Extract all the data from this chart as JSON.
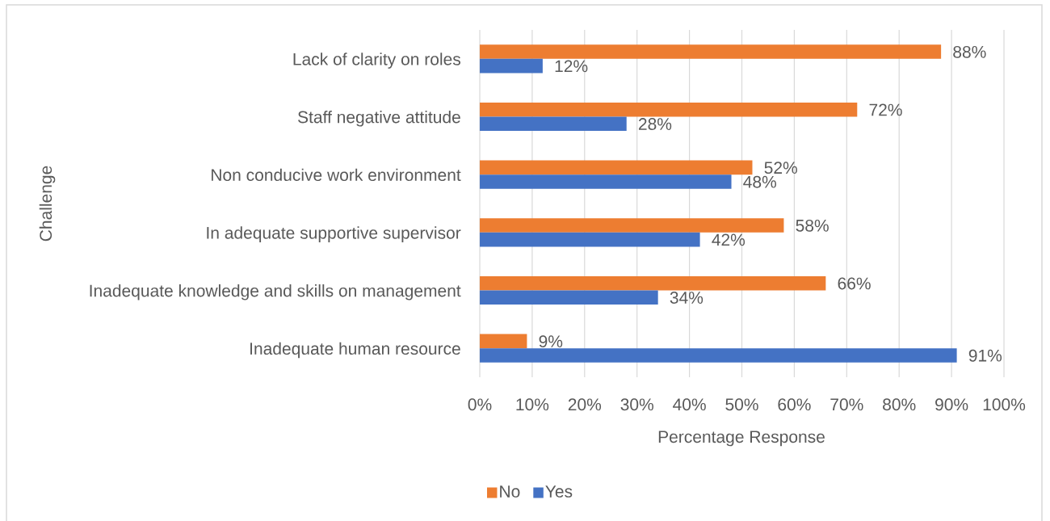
{
  "chart_data": {
    "type": "bar",
    "orientation": "horizontal",
    "xlabel": "Percentage Response",
    "ylabel": "Challenge",
    "categories": [
      "Lack of clarity on roles",
      "Staff negative attitude",
      "Non conducive work environment",
      "In adequate supportive supervisor",
      "Inadequate knowledge and skills on management",
      "Inadequate human resource"
    ],
    "series": [
      {
        "name": "No",
        "color": "#ed7d31",
        "values": [
          88,
          72,
          52,
          58,
          66,
          9
        ],
        "value_labels": [
          "88%",
          "72%",
          "52%",
          "58%",
          "66%",
          "9%"
        ]
      },
      {
        "name": "Yes",
        "color": "#4472c4",
        "values": [
          12,
          28,
          48,
          42,
          34,
          91
        ],
        "value_labels": [
          "12%",
          "28%",
          "48%",
          "42%",
          "34%",
          "91%"
        ]
      }
    ],
    "xlim": [
      0,
      100
    ],
    "xticks": [
      {
        "value": 0,
        "label": "0%"
      },
      {
        "value": 10,
        "label": "10%"
      },
      {
        "value": 20,
        "label": "20%"
      },
      {
        "value": 30,
        "label": "30%"
      },
      {
        "value": 40,
        "label": "40%"
      },
      {
        "value": 50,
        "label": "50%"
      },
      {
        "value": 60,
        "label": "60%"
      },
      {
        "value": 70,
        "label": "70%"
      },
      {
        "value": 80,
        "label": "80%"
      },
      {
        "value": 90,
        "label": "90%"
      },
      {
        "value": 100,
        "label": "100%"
      }
    ],
    "grid": "x",
    "legend": "bottom"
  }
}
